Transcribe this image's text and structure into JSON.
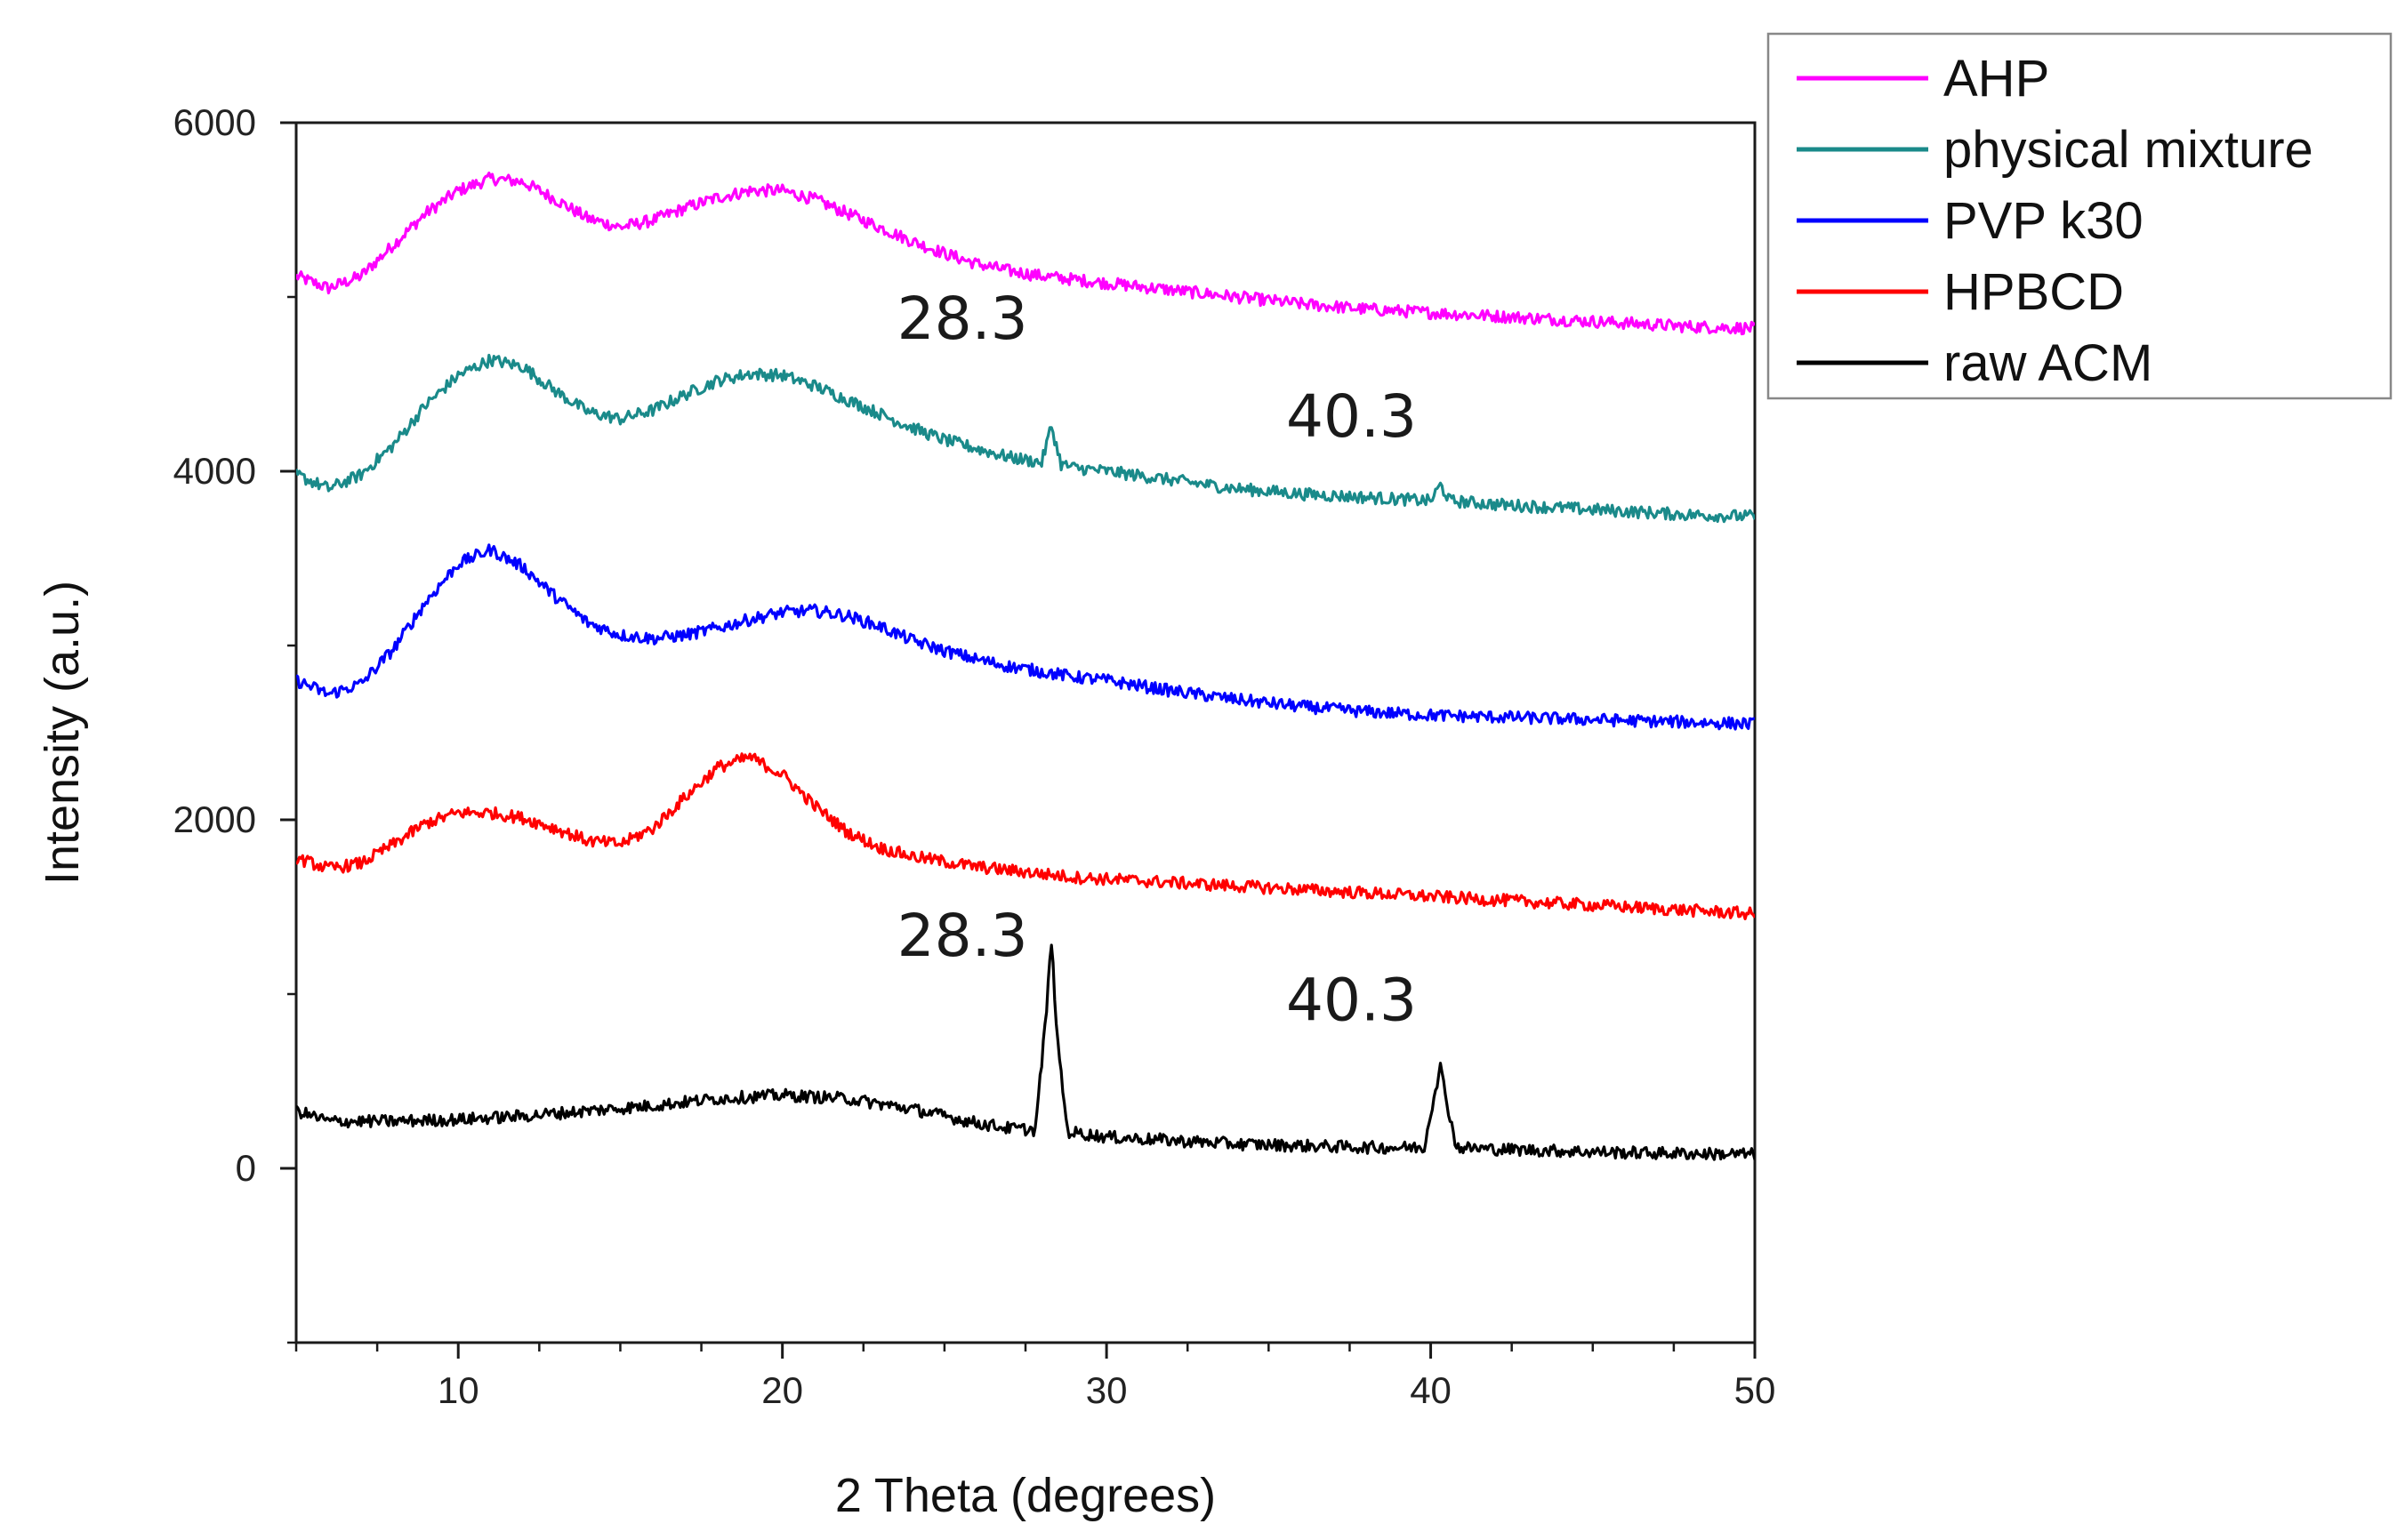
{
  "chart_data": {
    "type": "line",
    "title": "",
    "xlabel": "2 Theta (degrees)",
    "ylabel": "Intensity (a.u.)",
    "xlim": [
      5,
      50
    ],
    "ylim": [
      -1000,
      6000
    ],
    "x_ticks": [
      10,
      20,
      30,
      40,
      50
    ],
    "x_tick_labels": [
      "10",
      "20",
      "30",
      "40",
      "50"
    ],
    "y_ticks": [
      0,
      2000,
      4000,
      6000
    ],
    "y_tick_labels": [
      "0",
      "2000",
      "4000",
      "6000"
    ],
    "grid": false,
    "legend_position": "top-right-outside",
    "series": [
      {
        "name": "AHP",
        "color": "#ff00ff",
        "x": [
          5,
          6,
          7,
          8,
          9,
          10,
          11,
          12,
          13,
          14,
          15,
          16,
          17,
          18,
          19,
          20,
          21,
          22,
          23,
          24,
          25,
          26,
          27,
          28,
          29,
          30,
          32,
          34,
          36,
          38,
          40,
          42,
          44,
          46,
          48,
          50
        ],
        "y": [
          5120,
          5050,
          5120,
          5300,
          5480,
          5610,
          5680,
          5660,
          5560,
          5450,
          5400,
          5440,
          5510,
          5570,
          5610,
          5610,
          5560,
          5480,
          5400,
          5320,
          5250,
          5190,
          5150,
          5120,
          5100,
          5080,
          5040,
          5000,
          4960,
          4930,
          4910,
          4890,
          4870,
          4850,
          4830,
          4820
        ]
      },
      {
        "name": "physical mixture",
        "color": "#1a8a8a",
        "x": [
          5,
          6,
          7,
          8,
          9,
          10,
          11,
          12,
          13,
          14,
          15,
          16,
          17,
          18,
          19,
          20,
          21,
          22,
          23,
          24,
          25,
          26,
          27,
          28,
          28.3,
          28.6,
          29,
          30,
          32,
          34,
          36,
          38,
          40,
          40.3,
          40.6,
          42,
          44,
          46,
          48,
          50
        ],
        "y": [
          3980,
          3900,
          3980,
          4150,
          4380,
          4550,
          4640,
          4600,
          4460,
          4340,
          4300,
          4350,
          4440,
          4520,
          4560,
          4550,
          4490,
          4410,
          4330,
          4250,
          4180,
          4130,
          4080,
          4050,
          4260,
          4040,
          4020,
          4000,
          3950,
          3900,
          3870,
          3850,
          3830,
          3920,
          3830,
          3810,
          3790,
          3770,
          3750,
          3740
        ]
      },
      {
        "name": "PVP k30",
        "color": "#0000ff",
        "x": [
          5,
          6,
          7,
          8,
          9,
          10,
          11,
          12,
          13,
          14,
          15,
          16,
          17,
          18,
          19,
          20,
          21,
          22,
          23,
          24,
          25,
          26,
          27,
          28,
          29,
          30,
          32,
          34,
          36,
          38,
          40,
          42,
          44,
          46,
          48,
          50
        ],
        "y": [
          2800,
          2720,
          2780,
          2980,
          3250,
          3470,
          3550,
          3450,
          3280,
          3130,
          3060,
          3040,
          3060,
          3100,
          3150,
          3190,
          3200,
          3170,
          3110,
          3030,
          2970,
          2920,
          2880,
          2850,
          2820,
          2800,
          2740,
          2690,
          2650,
          2620,
          2600,
          2590,
          2580,
          2570,
          2560,
          2550
        ]
      },
      {
        "name": "HPBCD",
        "color": "#ff0000",
        "x": [
          5,
          6,
          7,
          8,
          9,
          10,
          11,
          12,
          13,
          14,
          15,
          16,
          17,
          18,
          19,
          20,
          21,
          22,
          23,
          24,
          25,
          26,
          27,
          28,
          29,
          30,
          32,
          34,
          36,
          38,
          40,
          42,
          44,
          46,
          48,
          50
        ],
        "y": [
          1780,
          1720,
          1750,
          1860,
          1980,
          2040,
          2040,
          2010,
          1950,
          1880,
          1860,
          1950,
          2130,
          2300,
          2360,
          2260,
          2080,
          1930,
          1840,
          1790,
          1760,
          1730,
          1710,
          1690,
          1670,
          1660,
          1640,
          1620,
          1600,
          1580,
          1560,
          1540,
          1520,
          1500,
          1480,
          1460
        ]
      },
      {
        "name": "raw ACM",
        "color": "#000000",
        "x": [
          5,
          6,
          8,
          10,
          12,
          14,
          16,
          18,
          20,
          22,
          24,
          26,
          27,
          27.8,
          28.1,
          28.3,
          28.5,
          28.8,
          30,
          32,
          34,
          36,
          38,
          39.8,
          40.1,
          40.3,
          40.5,
          40.8,
          42,
          44,
          46,
          48,
          50
        ],
        "y": [
          330,
          270,
          270,
          280,
          300,
          330,
          360,
          400,
          420,
          400,
          340,
          260,
          230,
          220,
          800,
          1300,
          700,
          210,
          180,
          160,
          140,
          130,
          120,
          120,
          420,
          580,
          380,
          120,
          110,
          100,
          90,
          85,
          80
        ]
      }
    ],
    "annotations": [
      {
        "text": "28.3",
        "x": 28.3,
        "y": 4760,
        "series": "physical mixture"
      },
      {
        "text": "40.3",
        "x": 40.3,
        "y": 4200,
        "series": "physical mixture"
      },
      {
        "text": "28.3",
        "x": 28.3,
        "y": 1220,
        "series": "raw ACM"
      },
      {
        "text": "40.3",
        "x": 40.3,
        "y": 850,
        "series": "raw ACM"
      }
    ]
  }
}
